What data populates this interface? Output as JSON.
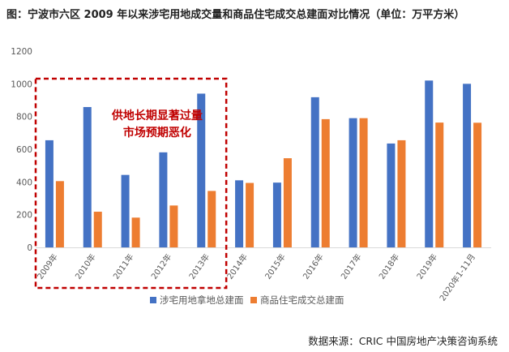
{
  "title": "图：宁波市六区 2009 年以来涉宅用地成交量和商品住宅成交总建面对比情况（单位：万平方米）",
  "source": "数据来源：CRIC 中国房地产决策咨询系统",
  "annotation": {
    "line1": "供地长期显著过量",
    "line2": "市场预期恶化"
  },
  "colors": {
    "land": "#4472C4",
    "housing": "#ED7D31",
    "annotation": "#C00000",
    "grid": "#D9D9D9",
    "axis_text": "#595959"
  },
  "chart_data": {
    "type": "bar",
    "categories": [
      "2009年",
      "2010年",
      "2011年",
      "2012年",
      "2013年",
      "2014年",
      "2015年",
      "2016年",
      "2017年",
      "2018年",
      "2019年",
      "2020年1-11月"
    ],
    "series": [
      {
        "name": "涉宅用地拿地总建面",
        "values": [
          655,
          858,
          443,
          581,
          940,
          410,
          396,
          918,
          790,
          635,
          1020,
          1000
        ]
      },
      {
        "name": "商品住宅成交总建面",
        "values": [
          405,
          218,
          182,
          256,
          345,
          394,
          545,
          784,
          790,
          655,
          763,
          762
        ]
      }
    ],
    "yticks": [
      "0",
      "200",
      "400",
      "600",
      "800",
      "1000",
      "1200"
    ],
    "ylim": [
      0,
      1200
    ],
    "grid": false,
    "legend_position": "bottom",
    "highlight_range": [
      "2009年",
      "2013年"
    ]
  }
}
